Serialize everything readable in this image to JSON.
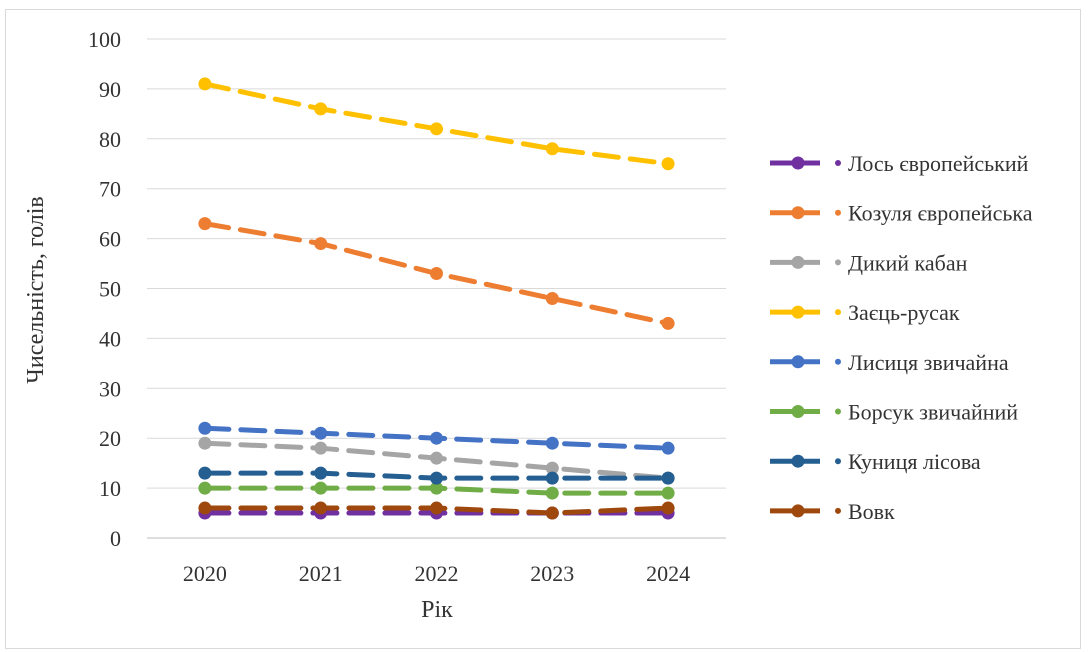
{
  "chart_data": {
    "type": "line",
    "xlabel": "Рік",
    "ylabel": "Чисельність, голів",
    "categories": [
      "2020",
      "2021",
      "2022",
      "2023",
      "2024"
    ],
    "ylim": [
      0,
      100
    ],
    "yticks": [
      0,
      10,
      20,
      30,
      40,
      50,
      60,
      70,
      80,
      90,
      100
    ],
    "grid": true,
    "legend_position": "right",
    "series": [
      {
        "name": "Лось європейський",
        "color": "#7030a0",
        "values": [
          5,
          5,
          5,
          5,
          5
        ]
      },
      {
        "name": "Козуля європейська",
        "color": "#ed7d31",
        "values": [
          63,
          59,
          53,
          48,
          43
        ]
      },
      {
        "name": "Дикий кабан",
        "color": "#a5a5a5",
        "values": [
          19,
          18,
          16,
          14,
          12
        ]
      },
      {
        "name": "Заєць-русак",
        "color": "#ffc000",
        "values": [
          91,
          86,
          82,
          78,
          75
        ]
      },
      {
        "name": "Лисиця звичайна",
        "color": "#4472c4",
        "values": [
          22,
          21,
          20,
          19,
          18
        ]
      },
      {
        "name": "Борсук звичайний",
        "color": "#70ad47",
        "values": [
          10,
          10,
          10,
          9,
          9
        ]
      },
      {
        "name": "Куниця лісова",
        "color": "#255e91",
        "values": [
          13,
          13,
          12,
          12,
          12
        ]
      },
      {
        "name": "Вовк",
        "color": "#9e480e",
        "values": [
          6,
          6,
          6,
          5,
          6
        ]
      }
    ]
  }
}
